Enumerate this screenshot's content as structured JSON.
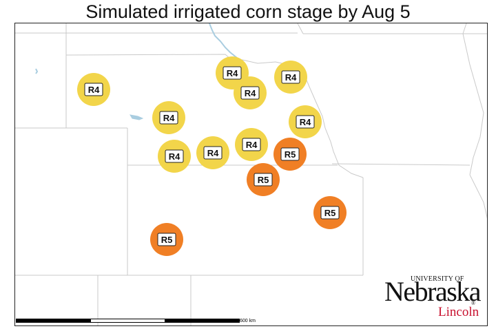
{
  "title": "Simulated irrigated corn stage by Aug 5",
  "colors": {
    "R4": "#f2d54a",
    "R5": "#f07f25",
    "border": "#c9c9c9",
    "water": "#a9cde0",
    "label_box": "#ffffff"
  },
  "sites": [
    {
      "stage": "R4"
    },
    {
      "stage": "R4"
    },
    {
      "stage": "R4"
    },
    {
      "stage": "R4"
    },
    {
      "stage": "R4"
    },
    {
      "stage": "R4"
    },
    {
      "stage": "R4"
    },
    {
      "stage": "R4"
    },
    {
      "stage": "R4"
    },
    {
      "stage": "R5"
    },
    {
      "stage": "R5"
    },
    {
      "stage": "R5"
    },
    {
      "stage": "R5"
    }
  ],
  "scale_bar": {
    "label": "600 km"
  },
  "logo": {
    "top_text": "UNIVERSITY OF",
    "main_text": "Nebraska",
    "sub_text": "Lincoln",
    "registered": "®",
    "sub_color": "#c8102e"
  }
}
